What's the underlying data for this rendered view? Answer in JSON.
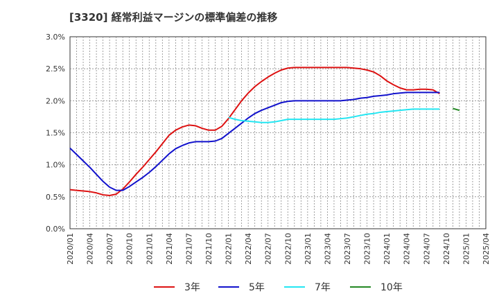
{
  "chart_data": {
    "type": "line",
    "title": "[3320]  経常利益マージンの標準偏差の推移",
    "xlabel": "",
    "ylabel": "",
    "x_ticks": [
      "2020/01",
      "2020/04",
      "2020/07",
      "2020/10",
      "2021/01",
      "2021/04",
      "2021/07",
      "2021/10",
      "2022/01",
      "2022/04",
      "2022/07",
      "2022/10",
      "2023/01",
      "2023/04",
      "2023/07",
      "2023/10",
      "2024/01",
      "2024/04",
      "2024/07",
      "2024/10",
      "2025/01",
      "2025/04"
    ],
    "y_ticks": [
      "0.0%",
      "0.5%",
      "1.0%",
      "1.5%",
      "2.0%",
      "2.5%",
      "3.0%"
    ],
    "ylim": [
      0,
      3.0
    ],
    "grid": true,
    "legend_position": "bottom",
    "series": [
      {
        "name": "3年",
        "color": "#dd1111",
        "start": "2020/01",
        "values": [
          0.61,
          0.6,
          0.59,
          0.58,
          0.56,
          0.53,
          0.52,
          0.54,
          0.62,
          0.73,
          0.85,
          0.96,
          1.08,
          1.2,
          1.33,
          1.46,
          1.54,
          1.59,
          1.62,
          1.61,
          1.57,
          1.54,
          1.54,
          1.6,
          1.72,
          1.86,
          2.0,
          2.12,
          2.22,
          2.3,
          2.37,
          2.43,
          2.48,
          2.51,
          2.52,
          2.52,
          2.52,
          2.52,
          2.52,
          2.52,
          2.52,
          2.52,
          2.52,
          2.51,
          2.5,
          2.48,
          2.45,
          2.39,
          2.31,
          2.25,
          2.2,
          2.17,
          2.17,
          2.18,
          2.18,
          2.17,
          2.11
        ]
      },
      {
        "name": "5年",
        "color": "#1111cc",
        "start": "2020/01",
        "values": [
          1.26,
          1.16,
          1.06,
          0.96,
          0.85,
          0.74,
          0.65,
          0.6,
          0.6,
          0.66,
          0.73,
          0.8,
          0.88,
          0.97,
          1.07,
          1.17,
          1.25,
          1.3,
          1.34,
          1.36,
          1.36,
          1.36,
          1.37,
          1.41,
          1.49,
          1.57,
          1.65,
          1.73,
          1.8,
          1.85,
          1.89,
          1.93,
          1.97,
          1.99,
          2.0,
          2.0,
          2.0,
          2.0,
          2.0,
          2.0,
          2.0,
          2.0,
          2.01,
          2.02,
          2.04,
          2.05,
          2.07,
          2.08,
          2.09,
          2.11,
          2.12,
          2.13,
          2.13,
          2.13,
          2.13,
          2.13,
          2.13
        ]
      },
      {
        "name": "7年",
        "color": "#22e6f2",
        "start": "2022/01",
        "values": [
          1.74,
          1.71,
          1.69,
          1.68,
          1.67,
          1.66,
          1.66,
          1.67,
          1.69,
          1.71,
          1.71,
          1.71,
          1.71,
          1.71,
          1.71,
          1.71,
          1.71,
          1.72,
          1.73,
          1.75,
          1.77,
          1.79,
          1.8,
          1.82,
          1.83,
          1.84,
          1.85,
          1.86,
          1.87,
          1.87,
          1.87,
          1.87,
          1.87
        ]
      },
      {
        "name": "10年",
        "color": "#228822",
        "start": "2024/11",
        "values": [
          1.88,
          1.85
        ]
      }
    ]
  }
}
